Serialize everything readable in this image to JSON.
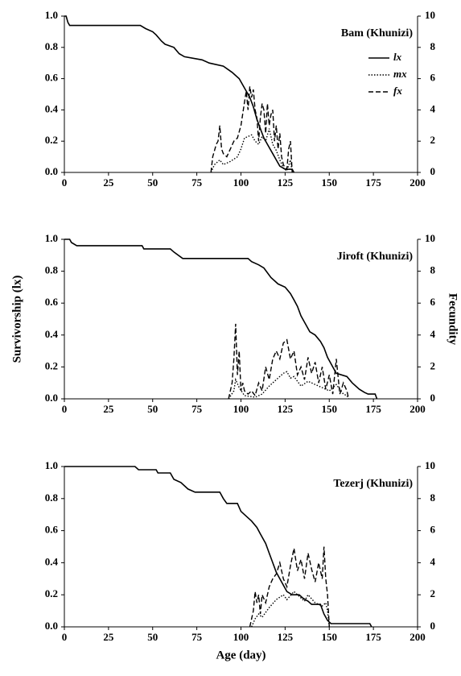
{
  "chart_data": [
    {
      "type": "line",
      "title": "Bam (Khunizi)",
      "legend": "upper right",
      "xlim": [
        0,
        200
      ],
      "xticks": [
        0,
        25,
        50,
        75,
        100,
        125,
        150,
        175,
        200
      ],
      "ylim": [
        0,
        1
      ],
      "yticks": [
        {
          "value": 0,
          "label": "0.0"
        },
        {
          "value": 0.2,
          "label": "0.2"
        },
        {
          "value": 0.4,
          "label": "0.4"
        },
        {
          "value": 0.6,
          "label": "0.6"
        },
        {
          "value": 0.8,
          "label": "0.8"
        },
        {
          "value": 1,
          "label": "1.0"
        }
      ],
      "y2lim": [
        0,
        10
      ],
      "y2ticks": [
        0,
        2,
        4,
        6,
        8,
        10
      ],
      "series": [
        {
          "name": "lx",
          "color": "#000000",
          "style": "solid",
          "axis": "y",
          "x": [
            0,
            1,
            2,
            3,
            43,
            46,
            50,
            52,
            55,
            57,
            62,
            65,
            68,
            78,
            82,
            90,
            95,
            99,
            101,
            103,
            105,
            107,
            109,
            111,
            113,
            115,
            118,
            120,
            122,
            125,
            129,
            130
          ],
          "values": [
            1,
            1,
            0.96,
            0.94,
            0.94,
            0.92,
            0.9,
            0.88,
            0.84,
            0.82,
            0.8,
            0.76,
            0.74,
            0.72,
            0.7,
            0.68,
            0.64,
            0.6,
            0.56,
            0.52,
            0.48,
            0.42,
            0.34,
            0.28,
            0.22,
            0.18,
            0.12,
            0.08,
            0.04,
            0.02,
            0.02,
            0
          ]
        },
        {
          "name": "mx",
          "color": "#000000",
          "style": "dotted",
          "axis": "y2",
          "x": [
            83,
            85,
            88,
            90,
            94,
            98,
            100,
            102,
            104,
            106,
            108,
            110,
            112,
            114,
            116,
            118,
            120,
            122,
            124,
            126,
            128,
            129
          ],
          "values": [
            0,
            0.5,
            0.8,
            0.5,
            0.7,
            1,
            1.5,
            2.2,
            2.3,
            2.4,
            2,
            1.8,
            2.3,
            2,
            2.8,
            1.8,
            1.4,
            0.8,
            0.3,
            0.1,
            0.8,
            0
          ]
        },
        {
          "name": "fx",
          "color": "#000000",
          "style": "dashed",
          "axis": "y2",
          "x": [
            83,
            84,
            86,
            87,
            88,
            89,
            90,
            92,
            94,
            96,
            98,
            100,
            102,
            103,
            104,
            105,
            106,
            107,
            108,
            109,
            110,
            111,
            112,
            113,
            114,
            115,
            116,
            117,
            118,
            119,
            120,
            121,
            122,
            123,
            124,
            125,
            126,
            127,
            128,
            129
          ],
          "values": [
            0,
            1,
            1.8,
            2,
            3,
            1.5,
            1.2,
            1,
            1.5,
            2,
            2.2,
            3,
            4.5,
            5.2,
            4,
            5.5,
            4.8,
            5.3,
            4,
            3.5,
            2,
            3.5,
            4.4,
            4,
            2.5,
            4.4,
            3,
            3.7,
            4,
            2,
            3,
            1.5,
            2.5,
            1,
            0.5,
            0.3,
            0.2,
            1.5,
            2,
            0
          ]
        }
      ]
    },
    {
      "type": "line",
      "title": "Jiroft (Khunizi)",
      "y_label": "Survivorship (lx)",
      "y2_label": "Fecundity",
      "xlim": [
        0,
        200
      ],
      "xticks": [
        0,
        25,
        50,
        75,
        100,
        125,
        150,
        175,
        200
      ],
      "ylim": [
        0,
        1
      ],
      "yticks": [
        {
          "value": 0,
          "label": "0.0"
        },
        {
          "value": 0.2,
          "label": "0.2"
        },
        {
          "value": 0.4,
          "label": "0.4"
        },
        {
          "value": 0.6,
          "label": "0.6"
        },
        {
          "value": 0.8,
          "label": "0.8"
        },
        {
          "value": 1,
          "label": "1.0"
        }
      ],
      "y2lim": [
        0,
        10
      ],
      "y2ticks": [
        0,
        2,
        4,
        6,
        8,
        10
      ],
      "series": [
        {
          "name": "lx",
          "color": "#000000",
          "style": "solid",
          "axis": "y",
          "x": [
            0,
            3,
            4,
            7,
            44,
            45,
            60,
            62,
            67,
            104,
            106,
            110,
            113,
            117,
            121,
            125,
            128,
            130,
            132,
            134,
            137,
            139,
            142,
            145,
            147,
            149,
            152,
            154,
            160,
            163,
            167,
            170,
            172,
            176,
            177
          ],
          "values": [
            1,
            1,
            0.98,
            0.96,
            0.96,
            0.94,
            0.94,
            0.92,
            0.88,
            0.88,
            0.86,
            0.84,
            0.82,
            0.76,
            0.72,
            0.7,
            0.66,
            0.62,
            0.58,
            0.52,
            0.46,
            0.42,
            0.4,
            0.36,
            0.32,
            0.26,
            0.2,
            0.16,
            0.14,
            0.1,
            0.06,
            0.04,
            0.03,
            0.03,
            0
          ]
        },
        {
          "name": "mx",
          "color": "#000000",
          "style": "dotted",
          "axis": "y2",
          "x": [
            93,
            96,
            97,
            99,
            102,
            108,
            112,
            116,
            120,
            124,
            126,
            128,
            130,
            134,
            138,
            142,
            146,
            150,
            154,
            158,
            160,
            161
          ],
          "values": [
            0,
            0.5,
            1.2,
            0.7,
            0.2,
            0.1,
            0.3,
            0.8,
            1.2,
            1.6,
            1.7,
            1.3,
            1.4,
            0.8,
            1.1,
            0.9,
            0.7,
            0.5,
            0.9,
            0.3,
            0.2,
            0
          ]
        },
        {
          "name": "fx",
          "color": "#000000",
          "style": "dashed",
          "axis": "y2",
          "x": [
            93,
            95,
            96,
            97,
            98,
            99,
            100,
            101,
            102,
            104,
            106,
            108,
            110,
            112,
            114,
            116,
            118,
            120,
            122,
            124,
            126,
            128,
            130,
            132,
            134,
            136,
            138,
            140,
            142,
            144,
            146,
            148,
            150,
            152,
            154,
            156,
            158,
            160,
            161
          ],
          "values": [
            0,
            1,
            2.5,
            4.7,
            1.5,
            3,
            0.5,
            1,
            0.5,
            0.3,
            0.5,
            0.2,
            1,
            0.5,
            2,
            1.2,
            2.5,
            3,
            2.5,
            3.5,
            3.7,
            2.5,
            3,
            1.5,
            2,
            1.2,
            2.6,
            1.6,
            2.3,
            1,
            2,
            0.6,
            1.5,
            0.3,
            2.5,
            0.3,
            1,
            0.5,
            0
          ]
        }
      ]
    },
    {
      "type": "line",
      "title": "Tezerj (Khunizi)",
      "x_label": "Age (day)",
      "xlim": [
        0,
        200
      ],
      "xticks": [
        0,
        25,
        50,
        75,
        100,
        125,
        150,
        175,
        200
      ],
      "ylim": [
        0,
        1
      ],
      "yticks": [
        {
          "value": 0,
          "label": "0.0"
        },
        {
          "value": 0.2,
          "label": "0.2"
        },
        {
          "value": 0.4,
          "label": "0.4"
        },
        {
          "value": 0.6,
          "label": "0.6"
        },
        {
          "value": 0.8,
          "label": "0.8"
        },
        {
          "value": 1,
          "label": "1.0"
        }
      ],
      "y2lim": [
        0,
        10
      ],
      "y2ticks": [
        0,
        2,
        4,
        6,
        8,
        10
      ],
      "series": [
        {
          "name": "lx",
          "color": "#000000",
          "style": "solid",
          "axis": "y",
          "x": [
            0,
            40,
            42,
            52,
            53,
            60,
            62,
            66,
            70,
            74,
            88,
            90,
            92,
            98,
            100,
            104,
            106,
            109,
            111,
            114,
            116,
            118,
            120,
            123,
            126,
            129,
            133,
            135,
            138,
            140,
            145,
            147,
            149,
            151,
            173,
            174
          ],
          "values": [
            1,
            1,
            0.98,
            0.98,
            0.96,
            0.96,
            0.92,
            0.9,
            0.86,
            0.84,
            0.84,
            0.8,
            0.77,
            0.77,
            0.72,
            0.68,
            0.66,
            0.62,
            0.58,
            0.52,
            0.46,
            0.4,
            0.34,
            0.28,
            0.22,
            0.2,
            0.2,
            0.18,
            0.16,
            0.14,
            0.14,
            0.08,
            0.04,
            0.02,
            0.02,
            0
          ]
        },
        {
          "name": "mx",
          "color": "#000000",
          "style": "dotted",
          "axis": "y2",
          "x": [
            106,
            108,
            110,
            112,
            116,
            120,
            124,
            126,
            130,
            132,
            136,
            138,
            142,
            146,
            148,
            149,
            150
          ],
          "values": [
            0,
            0.5,
            0.8,
            0.6,
            1.2,
            1.7,
            2,
            1.7,
            2.2,
            2,
            1.6,
            2,
            1.5,
            1.3,
            1.5,
            1,
            0
          ]
        },
        {
          "name": "fx",
          "color": "#000000",
          "style": "dashed",
          "axis": "y2",
          "x": [
            105,
            107,
            108,
            109,
            110,
            111,
            112,
            114,
            116,
            118,
            120,
            122,
            124,
            126,
            128,
            130,
            132,
            134,
            136,
            138,
            140,
            142,
            144,
            146,
            147,
            148,
            149,
            150
          ],
          "values": [
            0,
            1,
            2.2,
            1.5,
            2,
            0.8,
            2,
            1.5,
            2.5,
            3,
            3.3,
            4,
            3,
            2.5,
            3.8,
            4.9,
            3.5,
            4.2,
            3,
            4.6,
            3.6,
            2.8,
            4,
            3,
            5,
            3,
            2,
            0
          ]
        }
      ]
    }
  ]
}
